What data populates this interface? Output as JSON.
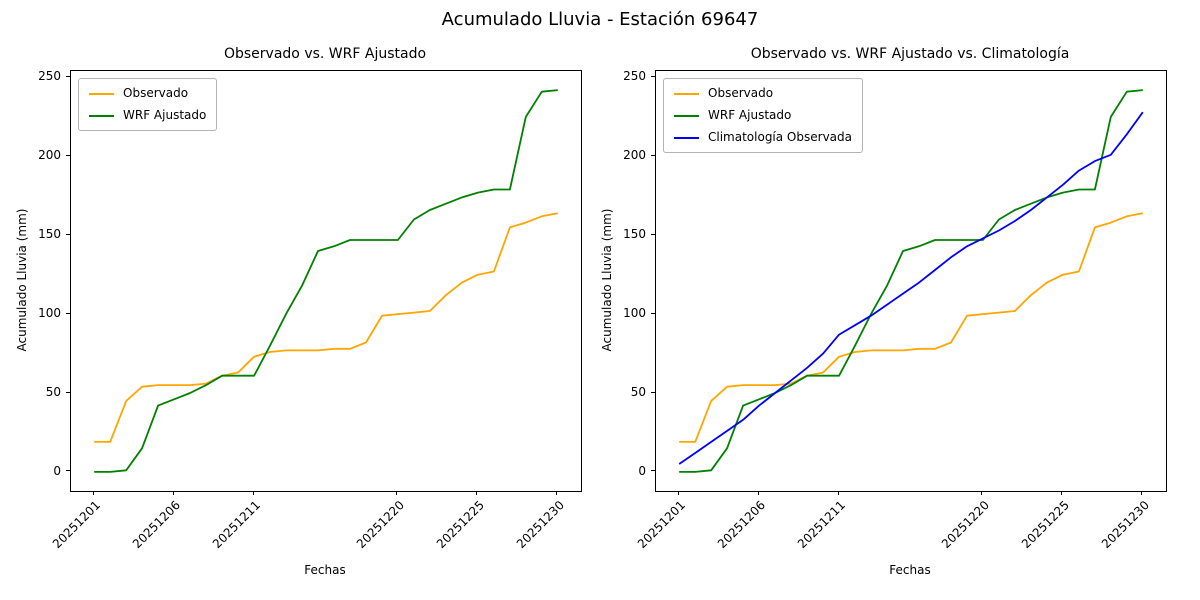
{
  "figure": {
    "suptitle": "Acumulado Lluvia - Estación 69647"
  },
  "chart_data": [
    {
      "type": "line",
      "title": "Observado vs. WRF Ajustado",
      "xlabel": "Fechas",
      "ylabel": "Acumulado Lluvia (mm)",
      "grid": false,
      "legend_position": "upper-left",
      "ylim": [
        -12.1,
        254.1
      ],
      "yticks": [
        0,
        50,
        100,
        150,
        200,
        250
      ],
      "x": [
        "20251201",
        "20251202",
        "20251203",
        "20251204",
        "20251205",
        "20251206",
        "20251207",
        "20251208",
        "20251209",
        "20251210",
        "20251211",
        "20251212",
        "20251213",
        "20251214",
        "20251215",
        "20251216",
        "20251217",
        "20251218",
        "20251219",
        "20251220",
        "20251221",
        "20251222",
        "20251223",
        "20251224",
        "20251225",
        "20251226",
        "20251227",
        "20251228",
        "20251229",
        "20251230"
      ],
      "xtick_indices": [
        0,
        5,
        10,
        19,
        24,
        29
      ],
      "xtick_labels": [
        "20251201",
        "20251206",
        "20251211",
        "20251220",
        "20251225",
        "20251230"
      ],
      "series": [
        {
          "name": "Observado",
          "color": "#ffa500",
          "values": [
            19,
            19,
            45,
            54,
            55,
            55,
            55,
            56,
            61,
            63,
            73,
            76,
            77,
            77,
            77,
            78,
            78,
            82,
            99,
            100,
            101,
            102,
            112,
            120,
            125,
            127,
            155,
            158,
            162,
            164
          ]
        },
        {
          "name": "WRF Ajustado",
          "color": "#008000",
          "values": [
            0,
            0,
            1,
            15,
            42,
            46,
            50,
            55,
            61,
            61,
            61,
            80,
            100,
            118,
            140,
            143,
            147,
            147,
            147,
            147,
            160,
            166,
            170,
            174,
            177,
            179,
            179,
            225,
            241,
            242
          ]
        }
      ]
    },
    {
      "type": "line",
      "title": "Observado vs. WRF Ajustado vs. Climatología",
      "xlabel": "Fechas",
      "ylabel": "Acumulado Lluvia (mm)",
      "grid": false,
      "legend_position": "upper-left",
      "ylim": [
        -12.1,
        254.1
      ],
      "yticks": [
        0,
        50,
        100,
        150,
        200,
        250
      ],
      "x": [
        "20251201",
        "20251202",
        "20251203",
        "20251204",
        "20251205",
        "20251206",
        "20251207",
        "20251208",
        "20251209",
        "20251210",
        "20251211",
        "20251212",
        "20251213",
        "20251214",
        "20251215",
        "20251216",
        "20251217",
        "20251218",
        "20251219",
        "20251220",
        "20251221",
        "20251222",
        "20251223",
        "20251224",
        "20251225",
        "20251226",
        "20251227",
        "20251228",
        "20251229",
        "20251230"
      ],
      "xtick_indices": [
        0,
        5,
        10,
        19,
        24,
        29
      ],
      "xtick_labels": [
        "20251201",
        "20251206",
        "20251211",
        "20251220",
        "20251225",
        "20251230"
      ],
      "series": [
        {
          "name": "Observado",
          "color": "#ffa500",
          "values": [
            19,
            19,
            45,
            54,
            55,
            55,
            55,
            56,
            61,
            63,
            73,
            76,
            77,
            77,
            77,
            78,
            78,
            82,
            99,
            100,
            101,
            102,
            112,
            120,
            125,
            127,
            155,
            158,
            162,
            164
          ]
        },
        {
          "name": "WRF Ajustado",
          "color": "#008000",
          "values": [
            0,
            0,
            1,
            15,
            42,
            46,
            50,
            55,
            61,
            61,
            61,
            80,
            100,
            118,
            140,
            143,
            147,
            147,
            147,
            147,
            160,
            166,
            170,
            174,
            177,
            179,
            179,
            225,
            241,
            242
          ]
        },
        {
          "name": "Climatología Observada",
          "color": "#0000ff",
          "values": [
            5,
            12,
            19,
            26,
            33,
            42,
            50,
            58,
            66,
            75,
            87,
            93,
            99,
            106,
            113,
            120,
            128,
            136,
            143,
            148,
            153,
            159,
            166,
            174,
            182,
            191,
            197,
            201,
            214,
            228
          ]
        }
      ]
    }
  ]
}
